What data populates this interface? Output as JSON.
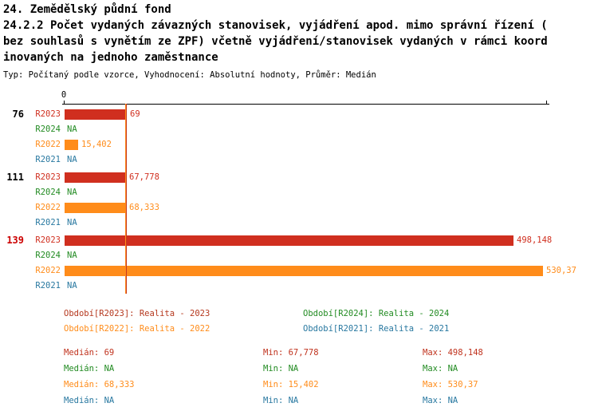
{
  "header": {
    "title_lines": [
      "24. Zemědělský půdní fond",
      "24.2.2 Počet vydaných závazných stanovisek, vyjádření apod. mimo správní řízení (",
      "bez souhlasů s vynětím ze ZPF) včetně vyjádření/stanovisek vydaných v rámci koord",
      "inovaných na jednoho zaměstnance"
    ],
    "subtitle": "Typ: Počítaný podle vzorce, Vyhodnocení: Absolutní hodnoty, Průměr: Medián"
  },
  "chart_data": {
    "type": "bar",
    "orientation": "horizontal",
    "xlim": [
      0,
      535
    ],
    "x_axis_origin_label": "0",
    "grid": false,
    "median_lines": [
      {
        "label": "median-R2023",
        "value": 69,
        "color": "#c8381e"
      },
      {
        "label": "median-R2022",
        "value": 68.333,
        "color": "#ff8c1a"
      }
    ],
    "groups": [
      {
        "label": "76",
        "label_color": "#000000",
        "rows": [
          {
            "period": "R2023",
            "value": 69,
            "display": "69",
            "color": "#d02f1f"
          },
          {
            "period": "R2024",
            "value": null,
            "display": "NA",
            "color": "#228b22"
          },
          {
            "period": "R2022",
            "value": 15.402,
            "display": "15,402",
            "color": "#ff8c1a"
          },
          {
            "period": "R2021",
            "value": null,
            "display": "NA",
            "color": "#2878a0"
          }
        ]
      },
      {
        "label": "111",
        "label_color": "#000000",
        "rows": [
          {
            "period": "R2023",
            "value": 67.778,
            "display": "67,778",
            "color": "#d02f1f"
          },
          {
            "period": "R2024",
            "value": null,
            "display": "NA",
            "color": "#228b22"
          },
          {
            "period": "R2022",
            "value": 68.333,
            "display": "68,333",
            "color": "#ff8c1a"
          },
          {
            "period": "R2021",
            "value": null,
            "display": "NA",
            "color": "#2878a0"
          }
        ]
      },
      {
        "label": "139",
        "label_color": "#cc0000",
        "rows": [
          {
            "period": "R2023",
            "value": 498.148,
            "display": "498,148",
            "color": "#d02f1f"
          },
          {
            "period": "R2024",
            "value": null,
            "display": "NA",
            "color": "#228b22"
          },
          {
            "period": "R2022",
            "value": 530.37,
            "display": "530,37",
            "color": "#ff8c1a"
          },
          {
            "period": "R2021",
            "value": null,
            "display": "NA",
            "color": "#2878a0"
          }
        ]
      }
    ]
  },
  "legend": [
    {
      "label": "Období[R2023]: Realita - 2023",
      "color": "#b5381e"
    },
    {
      "label": "Období[R2024]: Realita - 2024",
      "color": "#228b22"
    },
    {
      "label": "Období[R2022]: Realita - 2022",
      "color": "#ff8c1a"
    },
    {
      "label": "Období[R2021]: Realita - 2021",
      "color": "#2878a0"
    }
  ],
  "stats": [
    {
      "color": "#c0331e",
      "median": "Medián: 69",
      "min": "Min: 67,778",
      "max": "Max: 498,148"
    },
    {
      "color": "#228b22",
      "median": "Medián: NA",
      "min": "Min: NA",
      "max": "Max: NA"
    },
    {
      "color": "#ff8c1a",
      "median": "Medián: 68,333",
      "min": "Min: 15,402",
      "max": "Max: 530,37"
    },
    {
      "color": "#2878a0",
      "median": "Medián: NA",
      "min": "Min: NA",
      "max": "Max: NA"
    }
  ]
}
